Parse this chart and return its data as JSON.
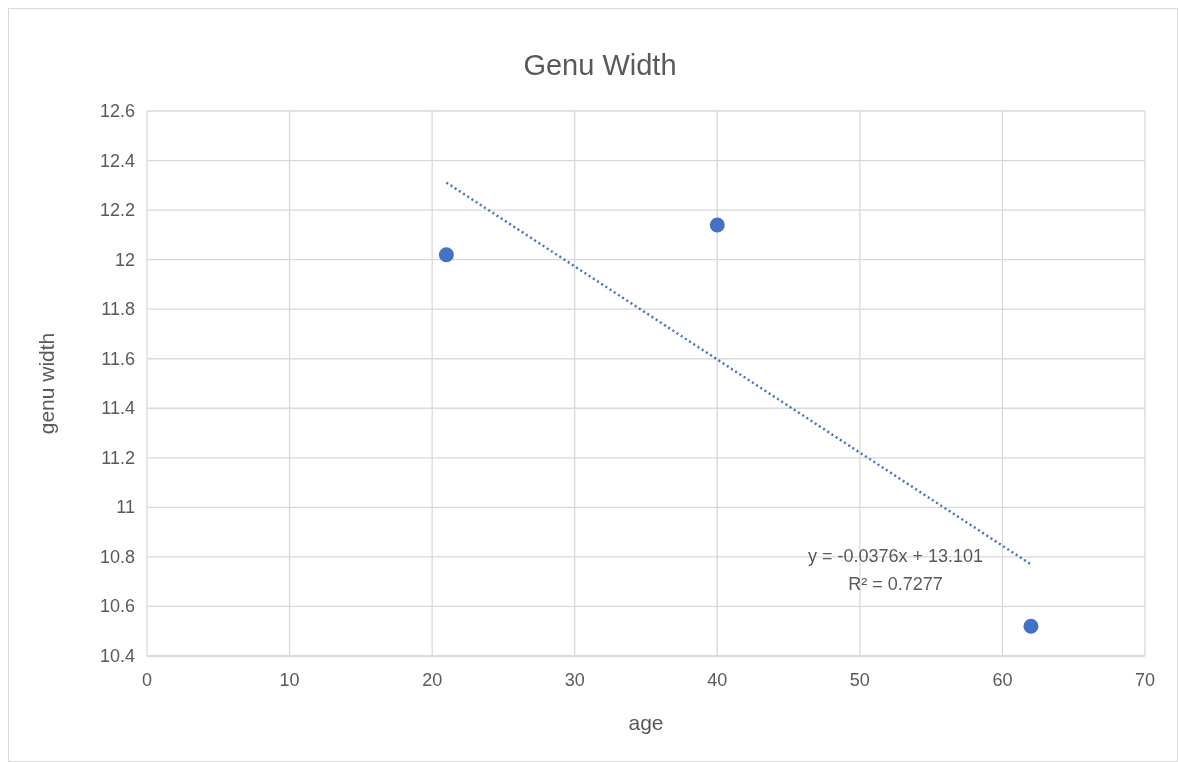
{
  "chart_data": {
    "type": "scatter",
    "title": "Genu Width",
    "xlabel": "age",
    "ylabel": "genu width",
    "series": [
      {
        "type": "scatter",
        "color": "#4472c4",
        "x": [
          21,
          40,
          62
        ],
        "values": [
          12.02,
          12.14,
          10.52
        ],
        "marker": "circle"
      },
      {
        "type": "line",
        "color": "#4472c4",
        "x": [
          21,
          62
        ],
        "values": [
          12.311,
          10.77
        ],
        "line_style": "dotted",
        "marker": "none"
      }
    ],
    "xlim": [
      0,
      70
    ],
    "xticks": [
      0,
      10,
      20,
      30,
      40,
      50,
      60,
      70
    ],
    "ylim": [
      10.4,
      12.6
    ],
    "yticks": [
      10.4,
      10.6,
      10.8,
      11,
      11.2,
      11.4,
      11.6,
      11.8,
      12,
      12.2,
      12.4,
      12.6
    ],
    "grid": true,
    "annotations": [
      "y = -0.0376x + 13.101",
      "R² = 0.7277"
    ]
  }
}
